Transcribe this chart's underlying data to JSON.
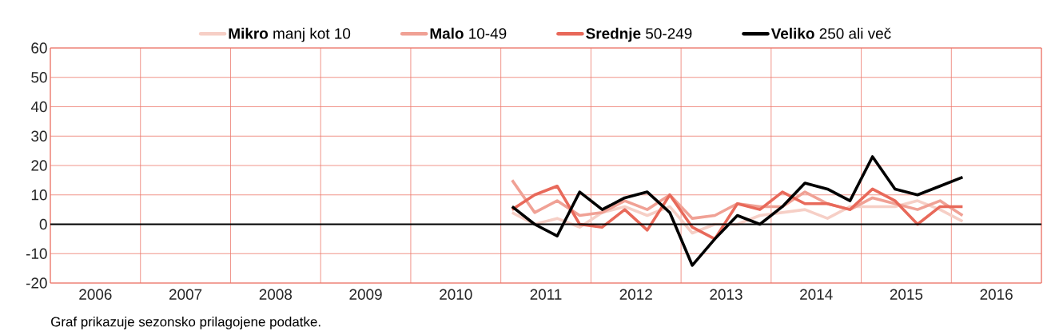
{
  "chart_data": {
    "type": "line",
    "x": [
      2011.125,
      2011.375,
      2011.625,
      2011.875,
      2012.125,
      2012.375,
      2012.625,
      2012.875,
      2013.125,
      2013.375,
      2013.625,
      2013.875,
      2014.125,
      2014.375,
      2014.625,
      2014.875,
      2015.125,
      2015.375,
      2015.625,
      2015.875,
      2016.125
    ],
    "series": [
      {
        "name": "**Mikro** manj kot 10",
        "color": "#f6cfc6",
        "values": [
          4,
          0,
          2,
          -1,
          4,
          6,
          3,
          6,
          -3,
          0,
          0,
          3,
          4,
          5,
          2,
          6,
          6,
          6,
          8,
          5,
          1
        ]
      },
      {
        "name": "**Malo** 10-49",
        "color": "#f0a195",
        "values": [
          15,
          4,
          8,
          3,
          4,
          8,
          5,
          10,
          2,
          3,
          7,
          6,
          6,
          11,
          7,
          5,
          9,
          7,
          5,
          8,
          3
        ]
      },
      {
        "name": "**Srednje** 50-249",
        "color": "#e8695a",
        "values": [
          5,
          10,
          13,
          0,
          -1,
          5,
          -2,
          10,
          -1,
          -5,
          7,
          5,
          11,
          7,
          7,
          5,
          12,
          8,
          0,
          6,
          6
        ]
      },
      {
        "name": "**Veliko** 250 ali več",
        "color": "#000000",
        "values": [
          6,
          0,
          -4,
          11,
          5,
          9,
          11,
          4,
          -14,
          -5,
          3,
          0,
          6,
          14,
          12,
          8,
          23,
          12,
          10,
          13,
          16
        ]
      }
    ],
    "xlim": [
      2006,
      2017
    ],
    "xticks": [
      {
        "value": 2006,
        "label": null
      },
      {
        "value": 2006.5,
        "label": "2006"
      },
      {
        "value": 2007,
        "label": null
      },
      {
        "value": 2007.5,
        "label": "2007"
      },
      {
        "value": 2008,
        "label": null
      },
      {
        "value": 2008.5,
        "label": "2008"
      },
      {
        "value": 2009,
        "label": null
      },
      {
        "value": 2009.5,
        "label": "2009"
      },
      {
        "value": 2010,
        "label": null
      },
      {
        "value": 2010.5,
        "label": "2010"
      },
      {
        "value": 2011,
        "label": null
      },
      {
        "value": 2011.5,
        "label": "2011"
      },
      {
        "value": 2012,
        "label": null
      },
      {
        "value": 2012.5,
        "label": "2012"
      },
      {
        "value": 2013,
        "label": null
      },
      {
        "value": 2013.5,
        "label": "2013"
      },
      {
        "value": 2014,
        "label": null
      },
      {
        "value": 2014.5,
        "label": "2014"
      },
      {
        "value": 2015,
        "label": null
      },
      {
        "value": 2015.5,
        "label": "2015"
      },
      {
        "value": 2016,
        "label": null
      },
      {
        "value": 2016.5,
        "label": "2016"
      },
      {
        "value": 2017,
        "label": null
      }
    ],
    "ylim": [
      -20,
      60
    ],
    "yticks": [
      -20,
      -10,
      0,
      10,
      20,
      30,
      40,
      50,
      60
    ],
    "grid": true,
    "legend": "top",
    "line_style": "solid",
    "marker": "none",
    "ref_lines": [
      {
        "axis": "y",
        "value": 0,
        "color": "#000000"
      }
    ],
    "annotations": [
      "Graf prikazuje sezonsko prilagojene podatke."
    ]
  }
}
